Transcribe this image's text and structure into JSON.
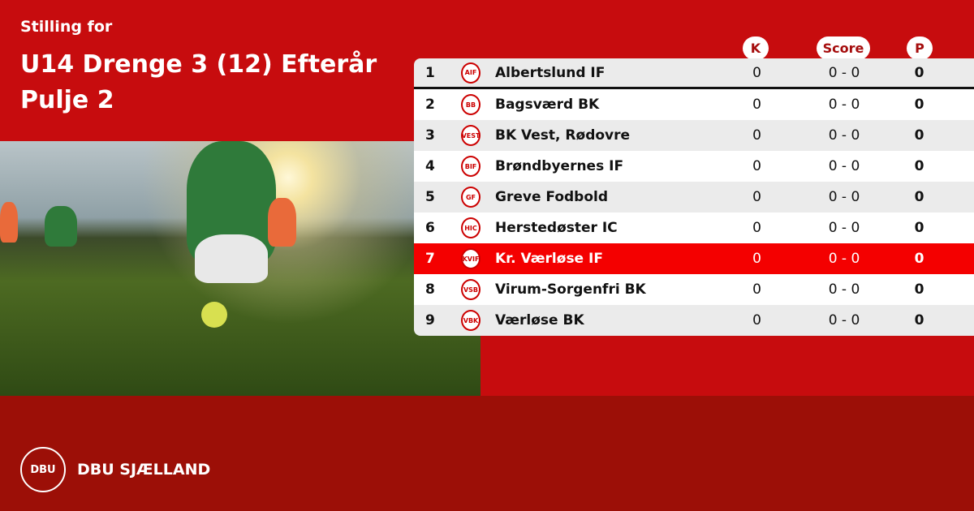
{
  "header": {
    "subtitle": "Stilling for",
    "title": "U14 Drenge 3 (12) Efterår Pulje 2"
  },
  "columns": {
    "k": "K",
    "score": "Score",
    "p": "P"
  },
  "rows": [
    {
      "pos": "1",
      "team": "Albertslund IF",
      "logo": "AIF",
      "k": "0",
      "score": "0 - 0",
      "p": "0"
    },
    {
      "pos": "2",
      "team": "Bagsværd BK",
      "logo": "BB",
      "k": "0",
      "score": "0 - 0",
      "p": "0"
    },
    {
      "pos": "3",
      "team": "BK Vest, Rødovre",
      "logo": "VEST",
      "k": "0",
      "score": "0 - 0",
      "p": "0"
    },
    {
      "pos": "4",
      "team": "Brøndbyernes IF",
      "logo": "BIF",
      "k": "0",
      "score": "0 - 0",
      "p": "0"
    },
    {
      "pos": "5",
      "team": "Greve Fodbold",
      "logo": "GF",
      "k": "0",
      "score": "0 - 0",
      "p": "0"
    },
    {
      "pos": "6",
      "team": "Herstedøster IC",
      "logo": "HIC",
      "k": "0",
      "score": "0 - 0",
      "p": "0"
    },
    {
      "pos": "7",
      "team": "Kr. Værløse IF",
      "logo": "KVIF",
      "k": "0",
      "score": "0 - 0",
      "p": "0",
      "highlight": true
    },
    {
      "pos": "8",
      "team": "Virum-Sorgenfri BK",
      "logo": "VSB",
      "k": "0",
      "score": "0 - 0",
      "p": "0"
    },
    {
      "pos": "9",
      "team": "Værløse BK",
      "logo": "VBK",
      "k": "0",
      "score": "0 - 0",
      "p": "0"
    }
  ],
  "footer": {
    "brand": "DBU SJÆLLAND",
    "logo_text": "DBU"
  },
  "colors": {
    "primary": "#c70c0e",
    "footer": "#9c0f07",
    "highlight": "#f40000"
  }
}
